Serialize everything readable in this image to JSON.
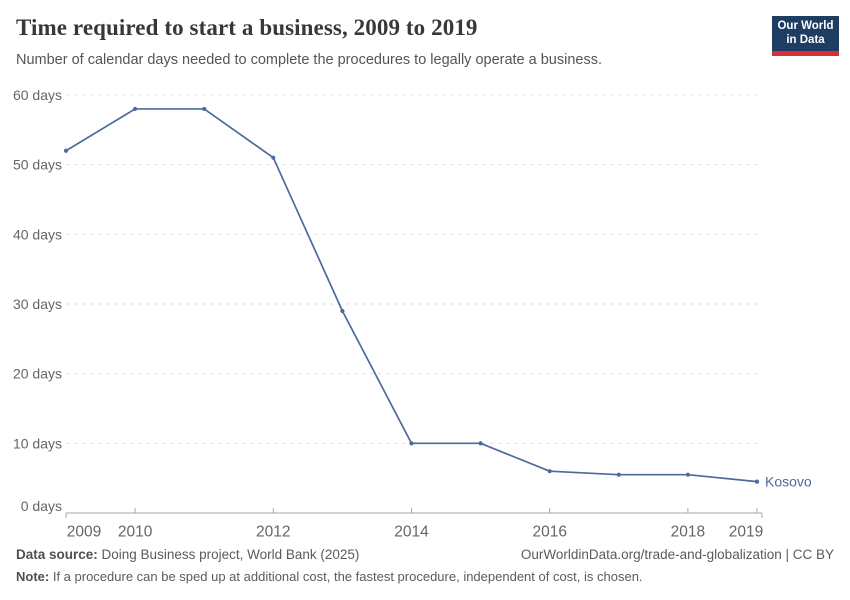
{
  "header": {
    "logo": {
      "line1": "Our World",
      "line2": "in Data"
    }
  },
  "chart_data": {
    "type": "line",
    "title": "Time required to start a business, 2009 to 2019",
    "subtitle": "Number of calendar days needed to complete the procedures to legally operate a business.",
    "x": [
      2009,
      2010,
      2011,
      2012,
      2013,
      2014,
      2015,
      2016,
      2017,
      2018,
      2019
    ],
    "series": [
      {
        "name": "Kosovo",
        "values": [
          52,
          58,
          58,
          51,
          29,
          10,
          10,
          6,
          5.5,
          5.5,
          4.5
        ],
        "color": "#4C6A9C",
        "end_label": "Kosovo"
      }
    ],
    "xlim": [
      2009,
      2019
    ],
    "ylim": [
      0,
      60
    ],
    "yticks": [
      0,
      10,
      20,
      30,
      40,
      50,
      60
    ],
    "ytick_suffix": " days",
    "xticks": [
      2009,
      2010,
      2012,
      2014,
      2016,
      2018,
      2019
    ],
    "grid": "horizontal-dashed",
    "legend": "end-of-line-label",
    "xlabel": "",
    "ylabel": "Number of calendar days"
  },
  "colors": {
    "line": "#4C6A9C",
    "gridline": "#dcdcdc",
    "axis": "#a5a5a5",
    "tick_label": "#666666",
    "logo_bg": "#1d3d63",
    "logo_red": "#dc2e37"
  },
  "footer": {
    "source_label": "Data source:",
    "source_text": " Doing Business project, World Bank (2025)",
    "link_text": "OurWorldinData.org/trade-and-globalization | CC BY",
    "note_label": "Note:",
    "note_text": " If a procedure can be sped up at additional cost, the fastest procedure, independent of cost, is chosen."
  }
}
